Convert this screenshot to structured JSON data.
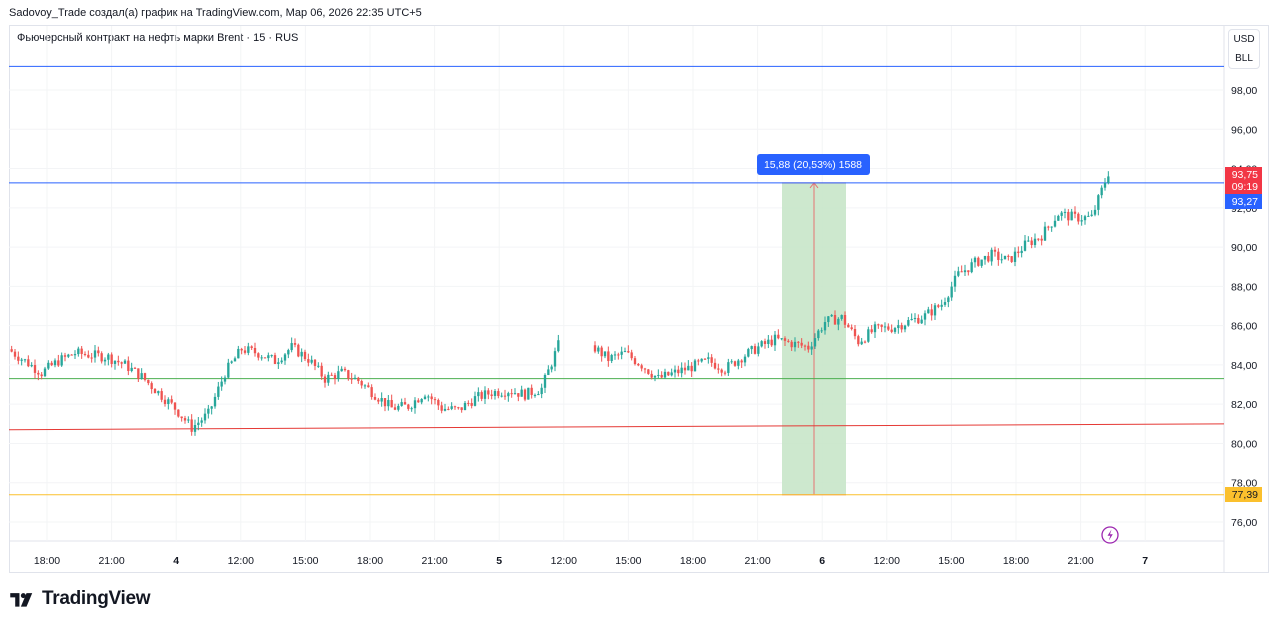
{
  "header": {
    "author_line": "Sadovoy_Trade создал(а) график на TradingView.com, Мар 06, 2026 22:35 UTC+5"
  },
  "symbol": {
    "title": "Фьючерсный контракт на нефть марки Brent · 15 · RUS"
  },
  "currency": {
    "top": "USD",
    "bottom": "BLL"
  },
  "price_labels": {
    "last_price": "93,75",
    "countdown": "09:19",
    "blue_line": "93,27",
    "yellow_line": "77,39"
  },
  "measure": {
    "label": "15,88 (20,53%) 1588"
  },
  "logo": {
    "text": "TradingView",
    "icon": "tradingview-logo-icon"
  },
  "colors": {
    "up": "#26a69a",
    "down": "#ef5350",
    "blue_line": "#2962ff",
    "green_line": "#4caf50",
    "red_line": "#e53935",
    "yellow_line": "#fbc02d",
    "measure_fill": "#c8e6c9",
    "flash_icon": "#9c27b0"
  },
  "chart_data": {
    "type": "candlestick",
    "y_axis": {
      "ticks": [
        76,
        78,
        80,
        82,
        84,
        86,
        88,
        90,
        92,
        94,
        96,
        98
      ],
      "tick_labels": [
        "76,00",
        "78,00",
        "80,00",
        "82,00",
        "84,00",
        "86,00",
        "88,00",
        "90,00",
        "92,00",
        "94,00",
        "96,00",
        "98,00"
      ],
      "ylim": [
        75.3,
        99.8
      ]
    },
    "x_axis": {
      "tick_labels": [
        "18:00",
        "21:00",
        "4",
        "12:00",
        "15:00",
        "18:00",
        "21:00",
        "5",
        "12:00",
        "15:00",
        "18:00",
        "21:00",
        "6",
        "12:00",
        "15:00",
        "18:00",
        "21:00",
        "7"
      ],
      "bold_labels": [
        "4",
        "5",
        "6",
        "7"
      ]
    },
    "horizontal_lines": [
      {
        "name": "blue-top-line",
        "y": 99.2,
        "color": "#2962ff"
      },
      {
        "name": "blue-line",
        "y": 93.27,
        "color": "#2962ff"
      },
      {
        "name": "green-line",
        "y": 83.3,
        "color": "#4caf50"
      },
      {
        "name": "yellow-line",
        "y": 77.39,
        "color": "#fbc02d"
      }
    ],
    "trend_line": {
      "name": "red-trend-line",
      "y_start": 80.7,
      "y_end": 81.0,
      "color": "#e53935"
    },
    "measure_box": {
      "price_from": 77.39,
      "price_to": 93.27,
      "change": 15.88,
      "percent": 20.53,
      "ticks": 1588
    },
    "price_path": [
      84.8,
      84.2,
      83.6,
      84.2,
      84.6,
      84.5,
      84.4,
      84.0,
      83.4,
      82.6,
      81.8,
      80.8,
      81.5,
      83.6,
      84.8,
      84.6,
      84.2,
      84.9,
      84.3,
      83.3,
      83.6,
      83.2,
      82.5,
      81.8,
      81.9,
      82.6,
      81.8,
      81.7,
      82.3,
      82.6,
      82.7,
      82.5,
      82.8,
      85.0,
      84.3,
      84.6,
      84.0,
      83.3,
      83.6,
      83.9,
      84.2,
      83.8,
      84.4,
      84.9,
      85.3,
      85.1,
      84.9,
      86.2,
      86.4,
      85.2,
      85.8,
      85.9,
      86.2,
      86.5,
      87.1,
      88.6,
      89.2,
      89.6,
      89.3,
      90.1,
      90.6,
      91.7,
      91.5,
      91.5,
      93.8
    ],
    "gaps_after_index": [
      32
    ]
  }
}
